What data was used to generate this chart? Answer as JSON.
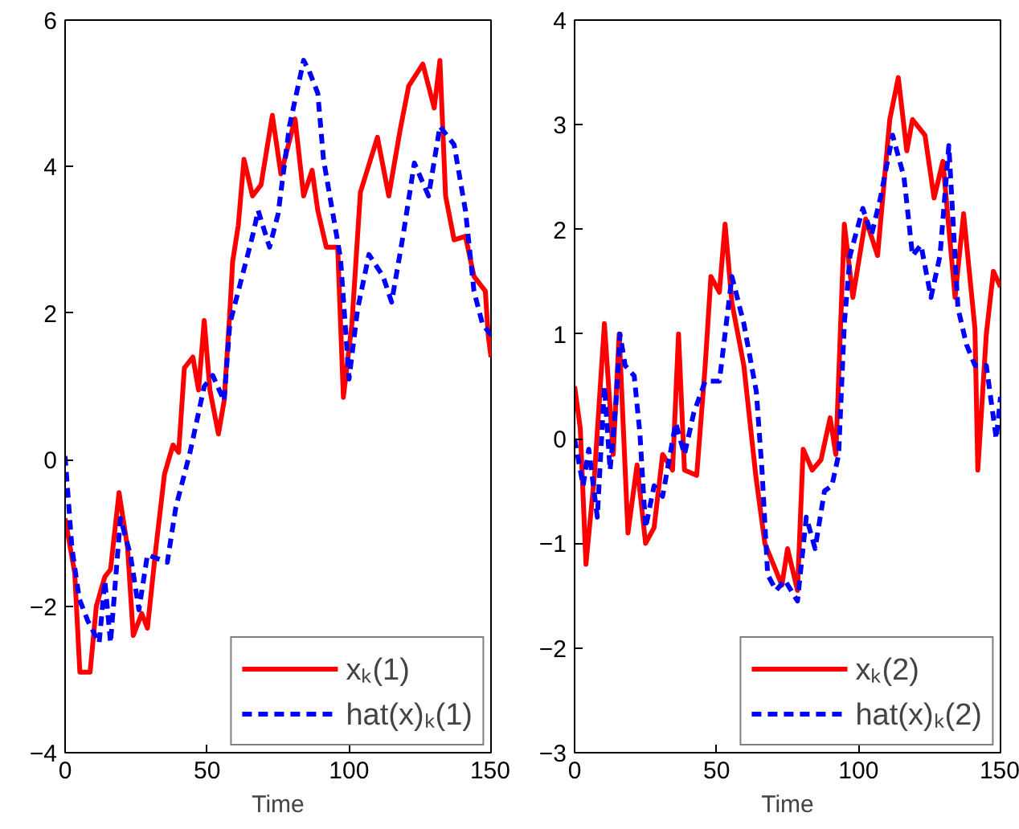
{
  "chart_data": [
    {
      "type": "line",
      "xlabel": "Time",
      "xlim": [
        0,
        150
      ],
      "xticks": [
        0,
        50,
        100,
        150
      ],
      "ylim": [
        -4,
        6
      ],
      "yticks": [
        -4,
        -2,
        0,
        2,
        4,
        6
      ],
      "grid": false,
      "legend": "bottom right",
      "marker": "none",
      "series": [
        {
          "name": "xₖ(1)",
          "color": "#ff0000",
          "line_style": "solid",
          "x": [
            0,
            3.4,
            5.2,
            8.8,
            11,
            14,
            16,
            19,
            22,
            24,
            27,
            29,
            32,
            35,
            38,
            40,
            42,
            45,
            47,
            49,
            51,
            54,
            56,
            58,
            59,
            61,
            63,
            66,
            69,
            73,
            76,
            81,
            84,
            87,
            89,
            92,
            96,
            98,
            101,
            104,
            110,
            114,
            118,
            121,
            126,
            130,
            132,
            134,
            137,
            141,
            144,
            148,
            149,
            150
          ],
          "values": [
            -0.8,
            -1.55,
            -2.9,
            -2.9,
            -2.0,
            -1.6,
            -1.5,
            -0.45,
            -1.2,
            -2.4,
            -2.1,
            -2.3,
            -1.2,
            -0.2,
            0.2,
            0.1,
            1.25,
            1.4,
            0.95,
            1.9,
            0.95,
            0.35,
            0.8,
            2.0,
            2.7,
            3.2,
            4.1,
            3.6,
            3.75,
            4.7,
            3.9,
            4.65,
            3.6,
            3.95,
            3.4,
            2.9,
            2.9,
            0.85,
            1.85,
            3.65,
            4.4,
            3.6,
            4.5,
            5.1,
            5.4,
            4.8,
            5.45,
            3.6,
            3.0,
            3.05,
            2.5,
            2.3,
            1.7,
            1.4
          ]
        },
        {
          "name": "hat(x)ₖ(1)",
          "color": "#0000ff",
          "line_style": "dashed",
          "x": [
            0,
            2.4,
            5,
            8,
            12,
            14,
            16,
            19.5,
            23,
            26,
            29,
            36,
            39,
            44,
            49,
            52,
            56,
            58,
            61,
            66,
            68,
            72,
            75,
            79,
            84,
            86,
            89,
            91,
            93,
            97,
            100,
            103,
            107,
            112,
            115,
            119,
            123,
            128,
            132,
            137,
            141,
            144,
            147,
            150
          ],
          "values": [
            0.05,
            -1.2,
            -1.9,
            -2.2,
            -2.5,
            -1.65,
            -2.5,
            -0.8,
            -1.3,
            -2.05,
            -1.3,
            -1.4,
            -0.65,
            0.1,
            1.0,
            1.15,
            0.8,
            1.85,
            2.3,
            3.05,
            3.4,
            2.9,
            3.35,
            4.55,
            5.45,
            5.3,
            5.0,
            4.1,
            3.65,
            2.75,
            1.1,
            2.05,
            2.8,
            2.5,
            2.15,
            3.05,
            4.05,
            3.6,
            4.55,
            4.3,
            3.4,
            2.3,
            1.85,
            1.7
          ]
        }
      ]
    },
    {
      "type": "line",
      "xlabel": "Time",
      "xlim": [
        0,
        150
      ],
      "xticks": [
        0,
        50,
        100,
        150
      ],
      "ylim": [
        -3,
        4
      ],
      "yticks": [
        -3,
        -2,
        -1,
        0,
        1,
        2,
        3,
        4
      ],
      "grid": false,
      "legend": "bottom right",
      "marker": "none",
      "series": [
        {
          "name": "xₖ(2)",
          "color": "#ff0000",
          "line_style": "solid",
          "x": [
            0,
            2,
            4,
            7,
            10.5,
            13.6,
            15.7,
            18.8,
            22,
            25,
            28,
            31,
            34.5,
            36.6,
            38.7,
            43,
            46,
            48,
            51,
            53,
            55.4,
            59.6,
            63.8,
            67,
            70,
            73,
            75,
            78.5,
            80.5,
            83.7,
            86.8,
            90,
            92,
            95,
            98,
            102.5,
            106.7,
            111,
            114,
            117,
            119,
            123.4,
            126.6,
            129.7,
            134,
            137,
            141,
            142,
            145,
            147.5,
            150
          ],
          "values": [
            0.5,
            0.1,
            -1.2,
            -0.35,
            1.1,
            -0.15,
            1.0,
            -0.9,
            -0.25,
            -1.0,
            -0.85,
            -0.15,
            -0.3,
            1.0,
            -0.3,
            -0.35,
            0.7,
            1.55,
            1.4,
            2.05,
            1.3,
            0.7,
            -0.35,
            -1.0,
            -1.2,
            -1.4,
            -1.05,
            -1.45,
            -0.1,
            -0.3,
            -0.2,
            0.2,
            -0.15,
            2.05,
            1.35,
            2.1,
            1.75,
            3.05,
            3.45,
            2.75,
            3.05,
            2.9,
            2.3,
            2.65,
            1.35,
            2.15,
            1.05,
            -0.3,
            1.0,
            1.6,
            1.45
          ]
        },
        {
          "name": "hat(x)ₖ(2)",
          "color": "#0000ff",
          "line_style": "dashed",
          "x": [
            0,
            3,
            5,
            8,
            10.5,
            12.5,
            14.6,
            16,
            17.8,
            21,
            23,
            25,
            28,
            31,
            35.6,
            38.7,
            42,
            46,
            51,
            55.4,
            59.6,
            64,
            66,
            68,
            71,
            74,
            78.5,
            81.6,
            84.7,
            88,
            90.6,
            93,
            95,
            97,
            101.5,
            104.6,
            107.7,
            112,
            116,
            119,
            122,
            125.5,
            128.7,
            131.8,
            135,
            138,
            141,
            145,
            148.5,
            150
          ],
          "values": [
            0,
            -0.45,
            -0.1,
            -0.75,
            0.5,
            -0.3,
            0.35,
            1.0,
            0.7,
            0.6,
            0.05,
            -0.85,
            -0.45,
            -0.55,
            0.15,
            -0.15,
            0.25,
            0.55,
            0.55,
            1.55,
            1.1,
            0.45,
            -0.3,
            -1.3,
            -1.45,
            -1.35,
            -1.55,
            -0.75,
            -1.05,
            -0.5,
            -0.45,
            -0.15,
            1.1,
            1.75,
            2.2,
            1.95,
            2.3,
            2.9,
            2.5,
            1.75,
            1.85,
            1.35,
            1.75,
            2.8,
            1.25,
            0.9,
            0.7,
            0.7,
            0,
            0.4
          ]
        }
      ]
    }
  ]
}
